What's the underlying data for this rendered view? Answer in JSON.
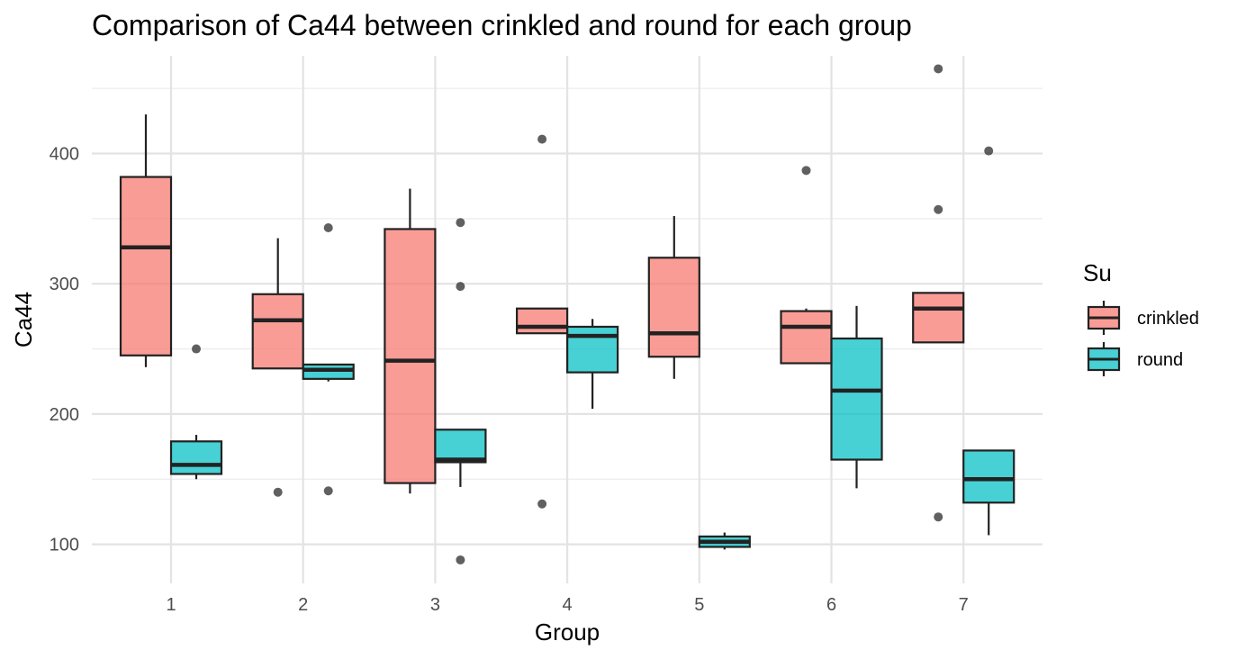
{
  "chart_data": {
    "type": "boxplot",
    "title": "Comparison of Ca44 between crinkled and round for each group",
    "xlabel": "Group",
    "ylabel": "Ca44",
    "categories": [
      "1",
      "2",
      "3",
      "4",
      "5",
      "6",
      "7"
    ],
    "ylim": [
      70,
      475
    ],
    "y_ticks": [
      100,
      200,
      300,
      400
    ],
    "grid": true,
    "legend": {
      "title": "Su",
      "position": "right",
      "entries": [
        "crinkled",
        "round"
      ]
    },
    "series": [
      {
        "name": "crinkled",
        "color": "#F8766D",
        "boxes": [
          {
            "group": "1",
            "low": 236,
            "q1": 245,
            "median": 328,
            "q3": 382,
            "high": 430,
            "outliers": []
          },
          {
            "group": "2",
            "low": 235,
            "q1": 235,
            "median": 272,
            "q3": 292,
            "high": 335,
            "outliers": [
              140
            ]
          },
          {
            "group": "3",
            "low": 139,
            "q1": 147,
            "median": 241,
            "q3": 342,
            "high": 373,
            "outliers": []
          },
          {
            "group": "4",
            "low": 262,
            "q1": 262,
            "median": 267,
            "q3": 281,
            "high": 281,
            "outliers": [
              411,
              131
            ]
          },
          {
            "group": "5",
            "low": 227,
            "q1": 244,
            "median": 262,
            "q3": 320,
            "high": 352,
            "outliers": []
          },
          {
            "group": "6",
            "low": 239,
            "q1": 239,
            "median": 267,
            "q3": 279,
            "high": 281,
            "outliers": [
              387
            ]
          },
          {
            "group": "7",
            "low": 255,
            "q1": 255,
            "median": 281,
            "q3": 293,
            "high": 293,
            "outliers": [
              465,
              357,
              121
            ]
          }
        ]
      },
      {
        "name": "round",
        "color": "#00BFC4",
        "boxes": [
          {
            "group": "1",
            "low": 150,
            "q1": 154,
            "median": 161,
            "q3": 179,
            "high": 184,
            "outliers": [
              250
            ]
          },
          {
            "group": "2",
            "low": 225,
            "q1": 227,
            "median": 234,
            "q3": 238,
            "high": 238,
            "outliers": [
              343,
              141
            ]
          },
          {
            "group": "3",
            "low": 144,
            "q1": 163,
            "median": 165,
            "q3": 188,
            "high": 188,
            "outliers": [
              347,
              298,
              88
            ]
          },
          {
            "group": "4",
            "low": 204,
            "q1": 232,
            "median": 260,
            "q3": 267,
            "high": 273,
            "outliers": []
          },
          {
            "group": "5",
            "low": 96,
            "q1": 98,
            "median": 102,
            "q3": 106,
            "high": 109,
            "outliers": []
          },
          {
            "group": "6",
            "low": 143,
            "q1": 165,
            "median": 218,
            "q3": 258,
            "high": 283,
            "outliers": []
          },
          {
            "group": "7",
            "low": 107,
            "q1": 132,
            "median": 150,
            "q3": 172,
            "high": 172,
            "outliers": [
              402
            ]
          }
        ]
      }
    ]
  }
}
